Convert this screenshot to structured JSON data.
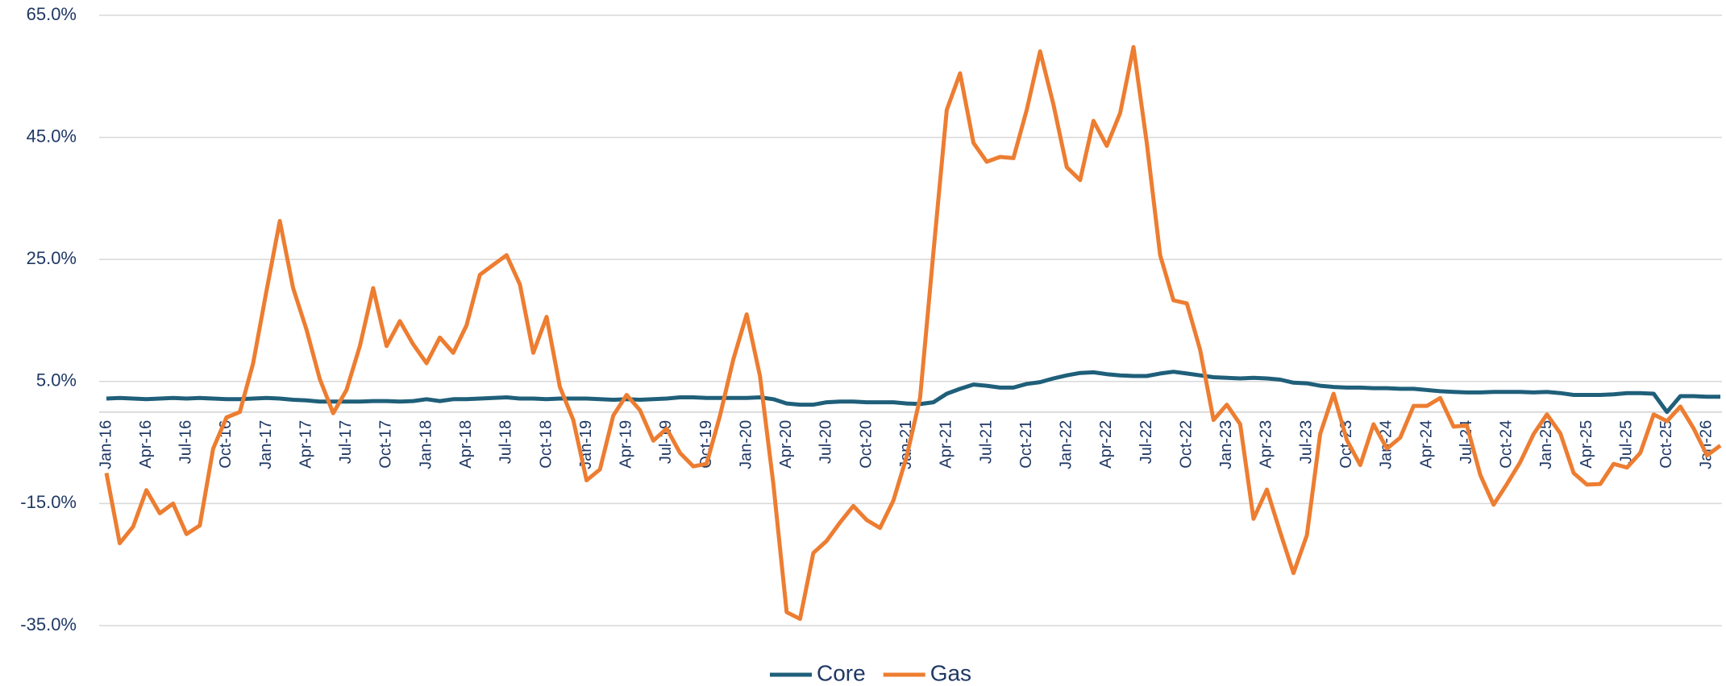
{
  "chart_data": {
    "type": "line",
    "categories": [
      "Jan-16",
      null,
      null,
      "Apr-16",
      null,
      null,
      "Jul-16",
      null,
      null,
      "Oct-16",
      null,
      null,
      "Jan-17",
      null,
      null,
      "Apr-17",
      null,
      null,
      "Jul-17",
      null,
      null,
      "Oct-17",
      null,
      null,
      "Jan-18",
      null,
      null,
      "Apr-18",
      null,
      null,
      "Jul-18",
      null,
      null,
      "Oct-18",
      null,
      null,
      "Jan-19",
      null,
      null,
      "Apr-19",
      null,
      null,
      "Jul-19",
      null,
      null,
      "Oct-19",
      null,
      null,
      "Jan-20",
      null,
      null,
      "Apr-20",
      null,
      null,
      "Jul-20",
      null,
      null,
      "Oct-20",
      null,
      null,
      "Jan-21",
      null,
      null,
      "Apr-21",
      null,
      null,
      "Jul-21",
      null,
      null,
      "Oct-21",
      null,
      null,
      "Jan-22",
      null,
      null,
      "Apr-22",
      null,
      null,
      "Jul-22",
      null,
      null,
      "Oct-22",
      null,
      null,
      "Jan-23",
      null,
      null,
      "Apr-23",
      null,
      null,
      "Jul-23",
      null,
      null,
      "Oct-23",
      null,
      null,
      "Jan-24",
      null,
      null,
      "Apr-24",
      null,
      null,
      "Jul-24",
      null,
      null,
      "Oct-24",
      null,
      null,
      "Jan-25",
      null,
      null,
      "Apr-25",
      null,
      null,
      "Jul-25",
      null,
      null,
      "Oct-25",
      null,
      null,
      "Jan-26",
      null
    ],
    "series": [
      {
        "name": "Core",
        "color": "#1f5f7a",
        "values": [
          2.2,
          2.3,
          2.2,
          2.1,
          2.2,
          2.3,
          2.2,
          2.3,
          2.2,
          2.1,
          2.1,
          2.2,
          2.3,
          2.2,
          2.0,
          1.9,
          1.7,
          1.7,
          1.7,
          1.7,
          1.8,
          1.8,
          1.7,
          1.8,
          2.1,
          1.8,
          2.1,
          2.1,
          2.2,
          2.3,
          2.4,
          2.2,
          2.2,
          2.1,
          2.2,
          2.2,
          2.2,
          2.1,
          2.0,
          2.1,
          2.0,
          2.1,
          2.2,
          2.4,
          2.4,
          2.3,
          2.3,
          2.3,
          2.3,
          2.4,
          2.1,
          1.4,
          1.2,
          1.2,
          1.6,
          1.7,
          1.7,
          1.6,
          1.6,
          1.6,
          1.4,
          1.3,
          1.6,
          3.0,
          3.8,
          4.5,
          4.3,
          4.0,
          4.0,
          4.6,
          4.9,
          5.5,
          6.0,
          6.4,
          6.5,
          6.2,
          6.0,
          5.9,
          5.9,
          6.3,
          6.6,
          6.3,
          6.0,
          5.7,
          5.6,
          5.5,
          5.6,
          5.5,
          5.3,
          4.8,
          4.7,
          4.3,
          4.1,
          4.0,
          4.0,
          3.9,
          3.9,
          3.8,
          3.8,
          3.6,
          3.4,
          3.3,
          3.2,
          3.2,
          3.3,
          3.3,
          3.3,
          3.2,
          3.3,
          3.1,
          2.8,
          2.8,
          2.8,
          2.9,
          3.1,
          3.1,
          3.0,
          0.0,
          2.6,
          2.6,
          2.5,
          2.5
        ]
      },
      {
        "name": "Gas",
        "color": "#ed7d31",
        "values": [
          -10,
          -21.5,
          -18.8,
          -12.8,
          -16.6,
          -15,
          -20,
          -18.6,
          -6,
          -0.9,
          0,
          8,
          19.8,
          31.3,
          20.3,
          13.5,
          5.4,
          -0.2,
          3.6,
          10.8,
          20.3,
          10.8,
          14.9,
          11.1,
          8,
          12.2,
          9.7,
          14.2,
          22.5,
          24.1,
          25.7,
          20.9,
          9.7,
          15.6,
          4.1,
          -1.3,
          -11.2,
          -9.4,
          -0.6,
          2.8,
          0.3,
          -4.7,
          -2.7,
          -6.7,
          -8.9,
          -8.5,
          -0.6,
          8.6,
          16,
          5.9,
          -11.8,
          -32.8,
          -33.9,
          -23.1,
          -21.1,
          -18.1,
          -15.4,
          -17.7,
          -19,
          -14.5,
          -7.3,
          2.3,
          26.1,
          49.5,
          55.5,
          44.1,
          41,
          41.8,
          41.6,
          49.5,
          59.1,
          50.4,
          40.1,
          38,
          47.7,
          43.6,
          49,
          59.8,
          44.1,
          25.7,
          18.3,
          17.8,
          10.2,
          -1.3,
          1.2,
          -2,
          -17.5,
          -12.7,
          -19.7,
          -26.4,
          -20.2,
          -3.6,
          3,
          -4.6,
          -8.7,
          -2,
          -6,
          -4.2,
          1,
          1,
          2.3,
          -2.4,
          -2.2,
          -10.3,
          -15.2,
          -11.8,
          -8.2,
          -3.6,
          -0.4,
          -3.5,
          -10,
          -11.9,
          -11.8,
          -8.5,
          -9.1,
          -6.7,
          -0.4,
          -1.5,
          0.9,
          -2.7,
          -7.1,
          -5.5
        ]
      }
    ],
    "ylim": [
      -35,
      65
    ],
    "yticks": [
      {
        "value": -35,
        "label": "-35.0%"
      },
      {
        "value": -15,
        "label": "-15.0%"
      },
      {
        "value": 5,
        "label": "5.0%"
      },
      {
        "value": 25,
        "label": "25.0%"
      },
      {
        "value": 45,
        "label": "45.0%"
      },
      {
        "value": 65,
        "label": "65.0%"
      }
    ],
    "grid": true,
    "legend": "bottom"
  }
}
